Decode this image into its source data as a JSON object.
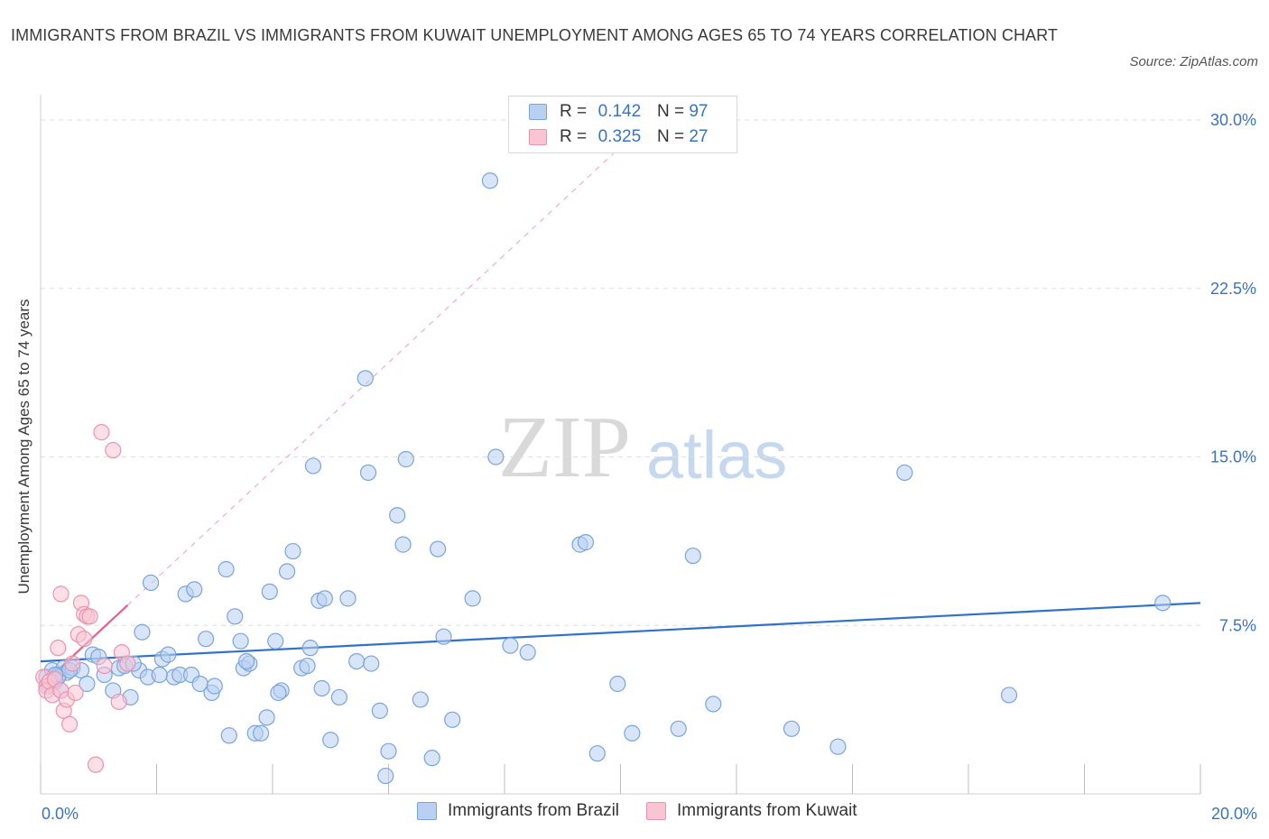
{
  "title": "IMMIGRANTS FROM BRAZIL VS IMMIGRANTS FROM KUWAIT UNEMPLOYMENT AMONG AGES 65 TO 74 YEARS CORRELATION CHART",
  "source": "Source: ZipAtlas.com",
  "watermark": {
    "zip": "ZIP",
    "atlas": "atlas"
  },
  "legend_top": [
    {
      "r_label": "R =",
      "r_value": "0.142",
      "n_label": "N =",
      "n_value": "97"
    },
    {
      "r_label": "R =",
      "r_value": "0.325",
      "n_label": "N =",
      "n_value": "27"
    }
  ],
  "legend_bottom": [
    "Immigrants from Brazil",
    "Immigrants from Kuwait"
  ],
  "colors": {
    "brazil_fill": "#b8d0f2",
    "brazil_stroke": "#7aa4dc",
    "brazil_line": "#2f72c8",
    "kuwait_fill": "#f9c4d4",
    "kuwait_stroke": "#ec93ae",
    "kuwait_line": "#e8608a",
    "grid": "#dedede",
    "axis_label": "#3a73c4"
  },
  "chart_data": {
    "type": "scatter",
    "title": "IMMIGRANTS FROM BRAZIL VS IMMIGRANTS FROM KUWAIT UNEMPLOYMENT AMONG AGES 65 TO 74 YEARS CORRELATION CHART",
    "xlabel": "",
    "ylabel": "Unemployment Among Ages 65 to 74 years",
    "xlim": [
      0,
      20
    ],
    "ylim": [
      0,
      30
    ],
    "x_tick_labels": [
      "0.0%",
      "20.0%"
    ],
    "y_ticks": [
      7.5,
      15.0,
      22.5,
      30.0
    ],
    "y_tick_labels": [
      "7.5%",
      "15.0%",
      "22.5%",
      "30.0%"
    ],
    "grid": true,
    "series": [
      {
        "name": "Immigrants from Brazil",
        "R": 0.142,
        "N": 97,
        "trend": {
          "x": [
            0,
            20
          ],
          "y": [
            5.9,
            8.5
          ]
        },
        "points": [
          [
            0.1,
            5.2
          ],
          [
            0.15,
            4.8
          ],
          [
            0.2,
            5.5
          ],
          [
            0.25,
            5.0
          ],
          [
            0.3,
            5.3
          ],
          [
            0.35,
            4.6
          ],
          [
            0.4,
            5.6
          ],
          [
            0.45,
            5.4
          ],
          [
            0.55,
            5.6
          ],
          [
            0.7,
            5.5
          ],
          [
            0.8,
            4.9
          ],
          [
            0.9,
            6.2
          ],
          [
            1.0,
            6.1
          ],
          [
            1.1,
            5.3
          ],
          [
            1.25,
            4.6
          ],
          [
            1.35,
            5.6
          ],
          [
            1.45,
            5.7
          ],
          [
            1.55,
            4.3
          ],
          [
            1.7,
            5.5
          ],
          [
            1.75,
            7.2
          ],
          [
            1.85,
            5.2
          ],
          [
            1.9,
            9.4
          ],
          [
            2.1,
            6.0
          ],
          [
            2.2,
            6.2
          ],
          [
            2.3,
            5.2
          ],
          [
            2.4,
            5.3
          ],
          [
            2.5,
            8.9
          ],
          [
            2.6,
            5.3
          ],
          [
            2.65,
            9.1
          ],
          [
            2.75,
            4.9
          ],
          [
            2.85,
            6.9
          ],
          [
            2.95,
            4.5
          ],
          [
            3.0,
            4.8
          ],
          [
            3.2,
            10.0
          ],
          [
            3.25,
            2.6
          ],
          [
            3.35,
            7.9
          ],
          [
            3.45,
            6.8
          ],
          [
            3.5,
            5.6
          ],
          [
            3.6,
            5.8
          ],
          [
            3.7,
            2.7
          ],
          [
            3.8,
            2.7
          ],
          [
            3.9,
            3.4
          ],
          [
            3.95,
            9.0
          ],
          [
            4.05,
            6.8
          ],
          [
            4.15,
            4.6
          ],
          [
            4.25,
            9.9
          ],
          [
            4.35,
            10.8
          ],
          [
            4.5,
            5.6
          ],
          [
            4.6,
            5.7
          ],
          [
            4.65,
            6.5
          ],
          [
            4.7,
            14.6
          ],
          [
            4.8,
            8.6
          ],
          [
            4.85,
            4.7
          ],
          [
            4.9,
            8.7
          ],
          [
            5.0,
            2.4
          ],
          [
            5.15,
            4.3
          ],
          [
            5.3,
            8.7
          ],
          [
            5.45,
            5.9
          ],
          [
            5.6,
            18.5
          ],
          [
            5.65,
            14.3
          ],
          [
            5.7,
            5.8
          ],
          [
            5.85,
            3.7
          ],
          [
            5.95,
            0.8
          ],
          [
            6.0,
            1.9
          ],
          [
            6.15,
            12.4
          ],
          [
            6.25,
            11.1
          ],
          [
            6.3,
            14.9
          ],
          [
            6.55,
            4.2
          ],
          [
            6.75,
            1.6
          ],
          [
            6.85,
            10.9
          ],
          [
            6.95,
            7.0
          ],
          [
            7.1,
            3.3
          ],
          [
            7.45,
            8.7
          ],
          [
            7.75,
            27.3
          ],
          [
            7.85,
            15.0
          ],
          [
            8.1,
            6.6
          ],
          [
            8.4,
            6.3
          ],
          [
            9.3,
            11.1
          ],
          [
            9.4,
            11.2
          ],
          [
            9.6,
            1.8
          ],
          [
            9.95,
            4.9
          ],
          [
            10.2,
            2.7
          ],
          [
            11.0,
            2.9
          ],
          [
            11.25,
            10.6
          ],
          [
            11.6,
            4.0
          ],
          [
            12.95,
            2.9
          ],
          [
            13.75,
            2.1
          ],
          [
            14.9,
            14.3
          ],
          [
            16.7,
            4.4
          ],
          [
            19.35,
            8.5
          ],
          [
            0.3,
            5.2
          ],
          [
            0.5,
            5.5
          ],
          [
            2.05,
            5.3
          ],
          [
            0.25,
            5.3
          ],
          [
            1.6,
            5.8
          ],
          [
            4.1,
            4.5
          ],
          [
            3.55,
            5.9
          ]
        ]
      },
      {
        "name": "Immigrants from Kuwait",
        "R": 0.325,
        "N": 27,
        "trend": {
          "x": [
            0,
            1.5
          ],
          "y": [
            4.8,
            8.4
          ]
        },
        "points": [
          [
            0.05,
            5.2
          ],
          [
            0.1,
            4.8
          ],
          [
            0.1,
            4.6
          ],
          [
            0.15,
            5.0
          ],
          [
            0.2,
            4.4
          ],
          [
            0.25,
            5.1
          ],
          [
            0.3,
            6.5
          ],
          [
            0.35,
            8.9
          ],
          [
            0.35,
            4.6
          ],
          [
            0.4,
            3.7
          ],
          [
            0.45,
            4.2
          ],
          [
            0.5,
            3.1
          ],
          [
            0.55,
            5.8
          ],
          [
            0.6,
            4.5
          ],
          [
            0.65,
            7.1
          ],
          [
            0.7,
            8.5
          ],
          [
            0.75,
            6.9
          ],
          [
            0.75,
            8.0
          ],
          [
            0.8,
            7.9
          ],
          [
            0.85,
            7.9
          ],
          [
            0.95,
            1.3
          ],
          [
            1.05,
            16.1
          ],
          [
            1.1,
            5.7
          ],
          [
            1.25,
            15.3
          ],
          [
            1.35,
            4.1
          ],
          [
            1.4,
            6.3
          ],
          [
            1.5,
            5.8
          ]
        ]
      }
    ]
  }
}
